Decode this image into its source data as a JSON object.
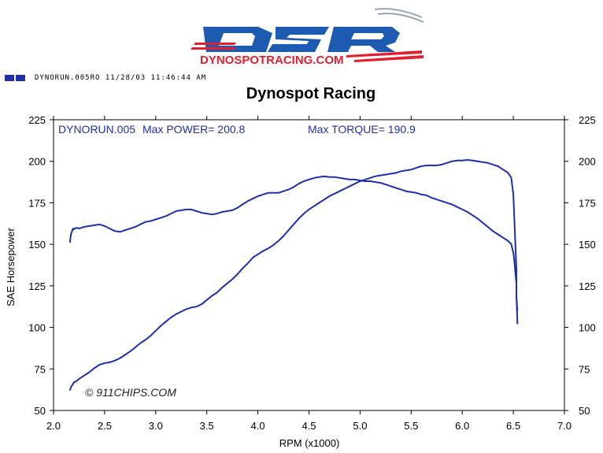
{
  "logo": {
    "brand": "DSR",
    "site": "DYNOSPOTRACING.COM",
    "colors": {
      "blue": "#1c5bb0",
      "red": "#e0202e"
    }
  },
  "run_header": {
    "text": "DYNORUN.005RO 11/28/03 11:46:44 AM",
    "swatch_color": "#1f2fa8"
  },
  "chart_data": {
    "type": "line",
    "title": "Dynospot Racing",
    "xlabel": "RPM (x1000)",
    "ylabel": "SAE Horsepower",
    "xlim": [
      2.0,
      7.0
    ],
    "ylim": [
      50,
      225
    ],
    "x_ticks": [
      "2.0",
      "2.5",
      "3.0",
      "3.5",
      "4.0",
      "4.5",
      "5.0",
      "5.5",
      "6.0",
      "6.5",
      "7.0"
    ],
    "y_ticks": [
      "50",
      "75",
      "100",
      "125",
      "150",
      "175",
      "200",
      "225"
    ],
    "right_axis_mirrors_left": true,
    "grid": false,
    "annotations": {
      "run_name": "DYNORUN.005",
      "max_power": "Max POWER= 200.8",
      "max_torque": "Max TORQUE= 190.9",
      "watermark": "© 911CHIPS.COM"
    },
    "line_color": "#1f2fa8",
    "series": [
      {
        "x": [
          2.16,
          2.17,
          2.19,
          2.2,
          2.22,
          2.25,
          2.3,
          2.35,
          2.4,
          2.45,
          2.5,
          2.55,
          2.6,
          2.65,
          2.7,
          2.75,
          2.8,
          2.85,
          2.9,
          2.95,
          3.0,
          3.05,
          3.1,
          3.15,
          3.2,
          3.25,
          3.3,
          3.35,
          3.4,
          3.45,
          3.5,
          3.55,
          3.6,
          3.65,
          3.7,
          3.75,
          3.8,
          3.85,
          3.9,
          3.95,
          4.0,
          4.05,
          4.1,
          4.15,
          4.2,
          4.25,
          4.3,
          4.35,
          4.4,
          4.45,
          4.5,
          4.55,
          4.6,
          4.65,
          4.7,
          4.75,
          4.8,
          4.85,
          4.9,
          4.95,
          5.0,
          5.05,
          5.1,
          5.15,
          5.2,
          5.25,
          5.3,
          5.35,
          5.4,
          5.45,
          5.5,
          5.55,
          5.6,
          5.65,
          5.7,
          5.75,
          5.8,
          5.85,
          5.9,
          5.95,
          6.0,
          6.05,
          6.1,
          6.15,
          6.2,
          6.25,
          6.3,
          6.35,
          6.4,
          6.45,
          6.48,
          6.5,
          6.51,
          6.52,
          6.53,
          6.53,
          6.54
        ],
        "values": [
          62.0,
          64.0,
          66.0,
          67.0,
          67.5,
          69.0,
          71.0,
          73.0,
          75.5,
          77.5,
          78.5,
          79.0,
          80.0,
          81.5,
          83.5,
          85.5,
          88.0,
          90.5,
          92.5,
          95.0,
          98.0,
          101.0,
          103.5,
          106.0,
          108.0,
          109.5,
          111.0,
          112.0,
          112.5,
          114.0,
          116.5,
          119.0,
          121.0,
          124.0,
          126.5,
          129.0,
          132.0,
          135.5,
          138.5,
          142.0,
          144.0,
          146.0,
          147.5,
          149.5,
          152.0,
          155.0,
          158.5,
          162.0,
          165.5,
          168.5,
          171.0,
          173.0,
          175.0,
          177.0,
          179.0,
          180.5,
          182.0,
          183.5,
          185.0,
          186.5,
          188.0,
          189.0,
          190.0,
          191.0,
          191.5,
          192.0,
          192.5,
          193.0,
          194.0,
          194.5,
          195.0,
          196.0,
          197.0,
          197.5,
          197.5,
          197.5,
          198.0,
          199.0,
          200.0,
          200.5,
          200.5,
          200.8,
          200.5,
          200.0,
          199.5,
          199.0,
          198.0,
          197.0,
          195.0,
          193.0,
          190.0,
          180.0,
          165.0,
          150.0,
          135.0,
          120.0,
          102.0
        ]
      },
      {
        "x": [
          2.16,
          2.17,
          2.19,
          2.2,
          2.22,
          2.25,
          2.3,
          2.35,
          2.4,
          2.45,
          2.5,
          2.55,
          2.6,
          2.65,
          2.7,
          2.75,
          2.8,
          2.85,
          2.9,
          2.95,
          3.0,
          3.05,
          3.1,
          3.15,
          3.2,
          3.25,
          3.3,
          3.35,
          3.4,
          3.45,
          3.5,
          3.55,
          3.6,
          3.65,
          3.7,
          3.75,
          3.8,
          3.85,
          3.9,
          3.95,
          4.0,
          4.05,
          4.1,
          4.15,
          4.2,
          4.25,
          4.3,
          4.35,
          4.4,
          4.45,
          4.5,
          4.55,
          4.6,
          4.65,
          4.7,
          4.75,
          4.8,
          4.85,
          4.9,
          4.95,
          5.0,
          5.05,
          5.1,
          5.15,
          5.2,
          5.25,
          5.3,
          5.35,
          5.4,
          5.45,
          5.5,
          5.55,
          5.6,
          5.65,
          5.7,
          5.75,
          5.8,
          5.85,
          5.9,
          5.95,
          6.0,
          6.05,
          6.1,
          6.15,
          6.2,
          6.25,
          6.3,
          6.35,
          6.4,
          6.45,
          6.48,
          6.5,
          6.51,
          6.52,
          6.53,
          6.53,
          6.54
        ],
        "values": [
          151.0,
          156.0,
          159.5,
          159.0,
          160.0,
          159.5,
          160.5,
          161.0,
          161.5,
          162.0,
          161.0,
          159.5,
          158.0,
          157.5,
          158.5,
          159.5,
          160.5,
          162.0,
          163.5,
          164.0,
          165.0,
          166.0,
          167.0,
          168.5,
          170.0,
          170.5,
          171.0,
          171.0,
          170.0,
          169.0,
          168.5,
          168.0,
          168.5,
          169.5,
          170.0,
          170.5,
          172.0,
          174.0,
          176.0,
          177.5,
          179.0,
          180.0,
          181.0,
          181.0,
          181.0,
          182.0,
          183.0,
          184.5,
          186.5,
          188.0,
          189.0,
          190.0,
          190.5,
          190.9,
          190.5,
          190.5,
          190.0,
          189.5,
          189.0,
          189.0,
          188.5,
          188.0,
          188.0,
          187.5,
          187.0,
          186.0,
          185.0,
          184.0,
          183.0,
          182.0,
          181.5,
          181.0,
          180.0,
          179.5,
          178.0,
          177.0,
          176.0,
          175.0,
          174.0,
          172.5,
          171.0,
          169.5,
          167.5,
          165.5,
          163.0,
          160.5,
          158.0,
          156.0,
          154.0,
          152.0,
          150.0,
          145.0,
          140.0,
          133.0,
          126.0,
          118.0,
          110.0
        ]
      }
    ]
  }
}
